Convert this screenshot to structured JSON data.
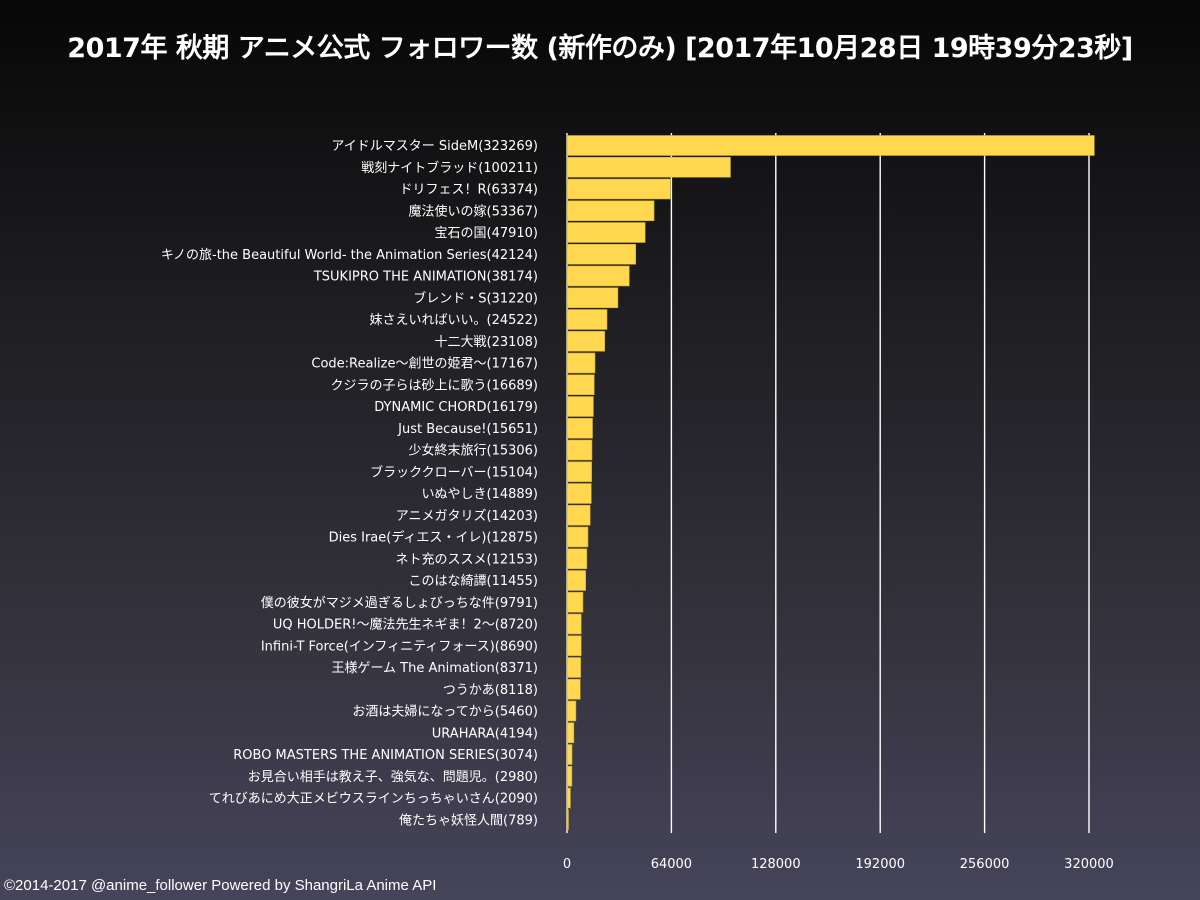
{
  "title": "2017年 秋期 アニメ公式 フォロワー数 (新作のみ) [2017年10月28日 19時39分23秒]",
  "footer": "©2014-2017 @anime_follower Powered by ShangriLa Anime API",
  "colors": {
    "bar": "#ffd84f",
    "bar_edge": "#c9a830",
    "grid": "#ffffff",
    "text": "#ffffff"
  },
  "chart_data": {
    "type": "bar",
    "orientation": "horizontal",
    "title": "2017年 秋期 アニメ公式 フォロワー数 (新作のみ) [2017年10月28日 19時39分23秒]",
    "xlabel": "",
    "ylabel": "",
    "xlim": [
      0,
      320000
    ],
    "xticks": [
      0,
      64000,
      128000,
      192000,
      256000,
      320000
    ],
    "grid": "vertical",
    "categories": [
      "アイドルマスター SideM(323269)",
      "戦刻ナイトブラッド(100211)",
      "ドリフェス！R(63374)",
      "魔法使いの嫁(53367)",
      "宝石の国(47910)",
      "キノの旅-the Beautiful World- the Animation Series(42124)",
      "TSUKIPRO THE ANIMATION(38174)",
      "ブレンド・S(31220)",
      "妹さえいればいい。(24522)",
      "十二大戦(23108)",
      "Code:Realize〜創世の姫君〜(17167)",
      "クジラの子らは砂上に歌う(16689)",
      "DYNAMIC CHORD(16179)",
      "Just Because!(15651)",
      "少女終末旅行(15306)",
      "ブラッククローバー(15104)",
      "いぬやしき(14889)",
      "アニメガタリズ(14203)",
      "Dies Irae(ディエス・イレ)(12875)",
      "ネト充のススメ(12153)",
      "このはな綺譚(11455)",
      "僕の彼女がマジメ過ぎるしょびっちな件(9791)",
      "UQ HOLDER!〜魔法先生ネギま！2〜(8720)",
      "Infini-T Force(インフィニティフォース)(8690)",
      "王様ゲーム The Animation(8371)",
      "つうかあ(8118)",
      "お酒は夫婦になってから(5460)",
      "URAHARA(4194)",
      "ROBO MASTERS THE ANIMATION SERIES(3074)",
      "お見合い相手は教え子、強気な、問題児。(2980)",
      "てれびあにめ大正メビウスラインちっちゃいさん(2090)",
      "俺たちゃ妖怪人間(789)"
    ],
    "values": [
      323269,
      100211,
      63374,
      53367,
      47910,
      42124,
      38174,
      31220,
      24522,
      23108,
      17167,
      16689,
      16179,
      15651,
      15306,
      15104,
      14889,
      14203,
      12875,
      12153,
      11455,
      9791,
      8720,
      8690,
      8371,
      8118,
      5460,
      4194,
      3074,
      2980,
      2090,
      789
    ]
  }
}
